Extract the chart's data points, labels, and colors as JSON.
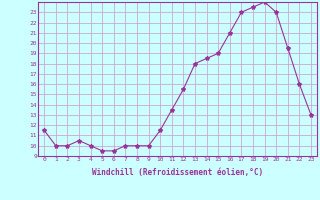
{
  "x": [
    0,
    1,
    2,
    3,
    4,
    5,
    6,
    7,
    8,
    9,
    10,
    11,
    12,
    13,
    14,
    15,
    16,
    17,
    18,
    19,
    20,
    21,
    22,
    23
  ],
  "y": [
    11.5,
    10.0,
    10.0,
    10.5,
    10.0,
    9.5,
    9.5,
    10.0,
    10.0,
    10.0,
    11.5,
    13.5,
    15.5,
    18.0,
    18.5,
    19.0,
    21.0,
    23.0,
    23.5,
    24.0,
    23.0,
    19.5,
    16.0,
    13.0
  ],
  "line_color": "#993399",
  "marker": "*",
  "marker_size": 3,
  "bg_color": "#ccffff",
  "grid_color": "#cc99cc",
  "xlabel": "Windchill (Refroidissement éolien,°C)",
  "ytick_labels": [
    "9",
    "10",
    "11",
    "12",
    "13",
    "14",
    "15",
    "16",
    "17",
    "18",
    "19",
    "20",
    "21",
    "22",
    "23"
  ],
  "ytick_values": [
    9,
    10,
    11,
    12,
    13,
    14,
    15,
    16,
    17,
    18,
    19,
    20,
    21,
    22,
    23
  ],
  "ylim": [
    9,
    24
  ],
  "xlim": [
    0,
    23
  ],
  "title_color": "#993399",
  "spine_color": "#993399"
}
